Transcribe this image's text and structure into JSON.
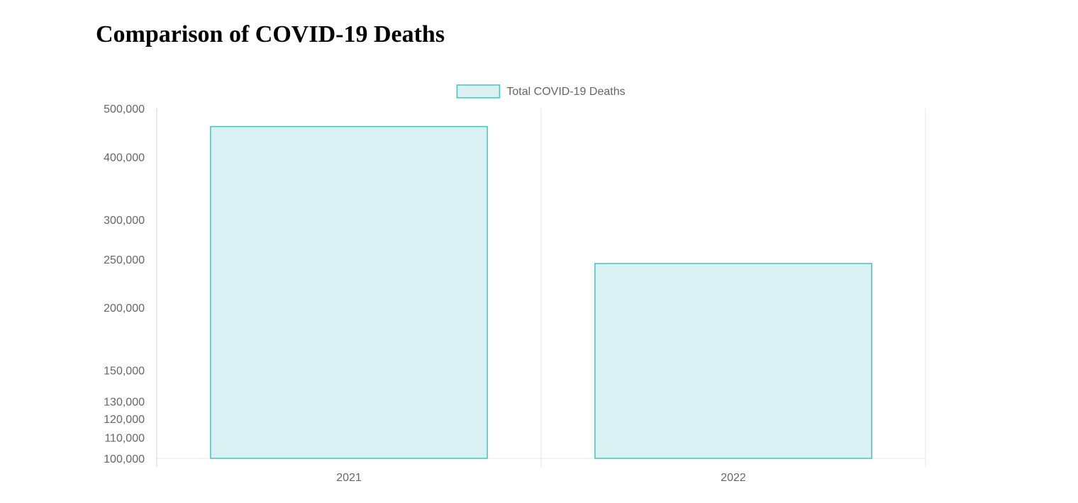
{
  "page": {
    "title": "Comparison of COVID-19 Deaths"
  },
  "chart_data": {
    "type": "bar",
    "categories": [
      "2021",
      "2022"
    ],
    "series": [
      {
        "name": "Total COVID-19 Deaths",
        "values": [
          460000,
          245000
        ]
      }
    ],
    "y_scale": "log",
    "ylim": [
      100000,
      500000
    ],
    "y_ticks": [
      100000,
      110000,
      120000,
      130000,
      150000,
      200000,
      250000,
      300000,
      400000,
      500000
    ],
    "y_tick_labels": [
      "100,000",
      "110,000",
      "120,000",
      "130,000",
      "150,000",
      "200,000",
      "250,000",
      "300,000",
      "400,000",
      "500,000"
    ],
    "legend": {
      "position": "top"
    },
    "grid": true,
    "colors": {
      "bar_fill": "#d9f1f2",
      "bar_stroke": "#4bc0c0",
      "grid": "#e5e5e5",
      "tick_text": "#666666"
    }
  }
}
